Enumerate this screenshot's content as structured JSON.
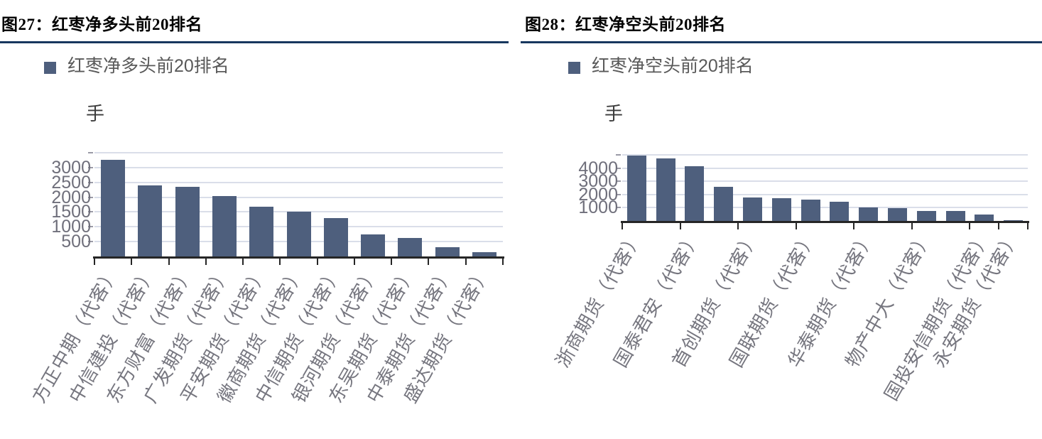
{
  "figure_titles": {
    "left": "图27：红枣净多头前20排名",
    "right": "图28：红枣净空头前20排名"
  },
  "chart_data": [
    {
      "type": "bar",
      "title": "图27：红枣净多头前20排名",
      "legend": "红枣净多头前20排名",
      "legend_position": "top-left",
      "ylabel": "手",
      "xlabel": "",
      "ylim": [
        0,
        3500
      ],
      "ytick_interval": 500,
      "visible_ytick_labels": [
        "3000",
        "2500",
        "2000",
        "1500",
        "1000",
        "500"
      ],
      "grid": true,
      "x_tick_label_rotation_deg": 60,
      "xtick_boundaries": [
        0,
        1,
        2,
        3,
        4,
        5,
        6,
        7,
        8,
        9,
        10,
        11
      ],
      "categories": [
        "方正中期（代客）",
        "中信建投（代客）",
        "东方财富（代客）",
        "广发期货（代客）",
        "平安期货（代客）",
        "徽商期货（代客）",
        "中信期货（代客）",
        "银河期货（代客）",
        "东吴期货（代客）",
        "中泰期货（代客）",
        "盛达期货（代客）"
      ],
      "values": [
        3250,
        2400,
        2350,
        2030,
        1670,
        1510,
        1300,
        750,
        630,
        310,
        140
      ]
    },
    {
      "type": "bar",
      "title": "图28：红枣净空头前20排名",
      "legend": "红枣净空头前20排名",
      "legend_position": "top-left",
      "ylabel": "手",
      "xlabel": "",
      "ylim": [
        0,
        5000
      ],
      "ytick_interval": 1000,
      "visible_ytick_labels": [
        "4000",
        "3000",
        "2000",
        "1000"
      ],
      "grid": true,
      "x_tick_label_rotation_deg": 60,
      "xtick_boundaries": [
        0,
        2,
        4,
        6,
        8,
        10,
        12,
        13,
        14
      ],
      "categories": [
        "浙商期货（代客）",
        "",
        "国泰君安（代客）",
        "",
        "首创期货（代客）",
        "",
        "国联期货（代客）",
        "",
        "华泰期货（代客）",
        "",
        "物产中大（代客）",
        "",
        "国投安信期货（代客）",
        "永安期货（代客）"
      ],
      "values": [
        4950,
        4730,
        4150,
        2580,
        1750,
        1720,
        1590,
        1430,
        1000,
        950,
        760,
        730,
        490,
        40
      ]
    }
  ],
  "colors": {
    "bar": "#4E5F7D",
    "separator": "#17375E",
    "gridline": "#DADEE9",
    "axis": "#262626",
    "tick_label_text": "#6F6F7B",
    "category_label_text": "#76767F",
    "legend_text": "#595959",
    "unit_text": "#3A3A3A",
    "title_text": "#000000",
    "background": "#FFFFFF"
  }
}
